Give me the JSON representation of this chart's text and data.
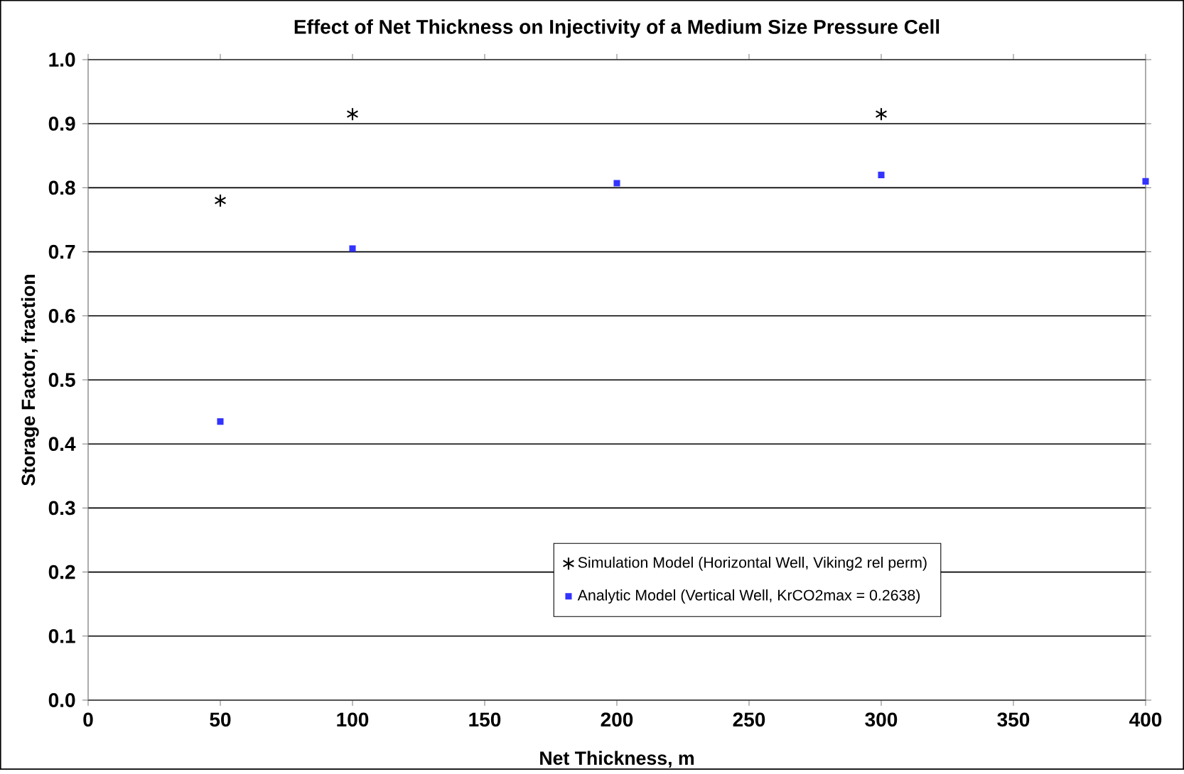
{
  "chart_data": {
    "type": "scatter",
    "title": "Effect of Net Thickness on Injectivity of a Medium Size Pressure Cell",
    "xlabel": "Net Thickness, m",
    "ylabel": "Storage Factor, fraction",
    "xlim": [
      0,
      400
    ],
    "xticks": [
      0,
      50,
      100,
      150,
      200,
      250,
      300,
      350,
      400
    ],
    "ylim": [
      0,
      1
    ],
    "yticks": [
      {
        "value": 0,
        "label": "0.0"
      },
      {
        "value": 0.1,
        "label": "0.1"
      },
      {
        "value": 0.2,
        "label": "0.2"
      },
      {
        "value": 0.3,
        "label": "0.3"
      },
      {
        "value": 0.4,
        "label": "0.4"
      },
      {
        "value": 0.5,
        "label": "0.5"
      },
      {
        "value": 0.6,
        "label": "0.6"
      },
      {
        "value": 0.7,
        "label": "0.7"
      },
      {
        "value": 0.8,
        "label": "0.8"
      },
      {
        "value": 0.9,
        "label": "0.9"
      },
      {
        "value": 1,
        "label": "1.0"
      }
    ],
    "grid": "y",
    "legend": "right",
    "series": [
      {
        "name": "Simulation Model (Horizontal Well, Viking2 rel perm)",
        "color": "#000000",
        "marker": "cross",
        "x": [
          50,
          100,
          300
        ],
        "values": [
          0.78,
          0.915,
          0.915
        ]
      },
      {
        "name": "Analytic Model (Vertical Well, KrCO2max = 0.2638)",
        "color": "#3333ff",
        "marker": "square",
        "x": [
          50,
          100,
          200,
          300,
          400
        ],
        "values": [
          0.435,
          0.705,
          0.807,
          0.82,
          0.81
        ]
      }
    ]
  }
}
